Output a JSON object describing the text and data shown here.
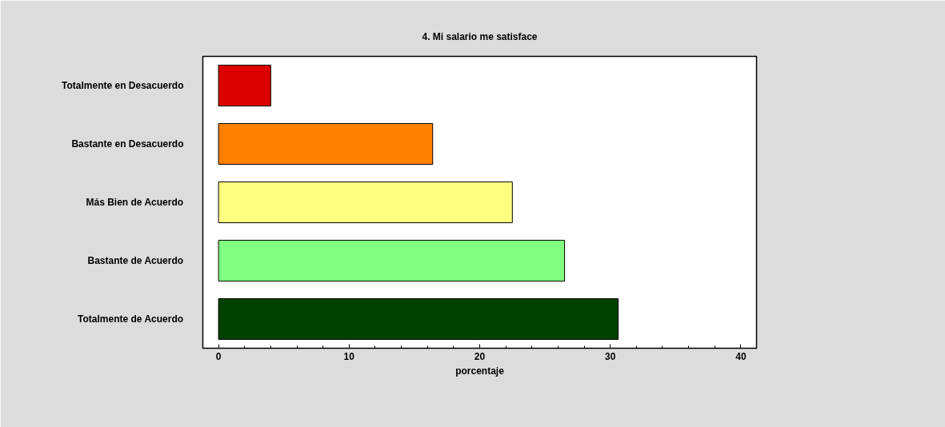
{
  "chart_data": {
    "type": "bar",
    "orientation": "horizontal",
    "title": "4. Mi salario me satisface",
    "xlabel": "porcentaje",
    "categories": [
      "Totalmente en Desacuerdo",
      "Bastante en Desacuerdo",
      "Más Bien de Acuerdo",
      "Bastante de Acuerdo",
      "Totalmente de Acuerdo"
    ],
    "values": [
      4.0,
      16.4,
      22.5,
      26.5,
      30.6
    ],
    "colors": [
      "#dd0000",
      "#ff8000",
      "#ffff80",
      "#80ff80",
      "#004000"
    ],
    "xlim": [
      -1.2,
      41.2
    ],
    "xticks": [
      0,
      10,
      20,
      30,
      40
    ],
    "grid": false
  }
}
